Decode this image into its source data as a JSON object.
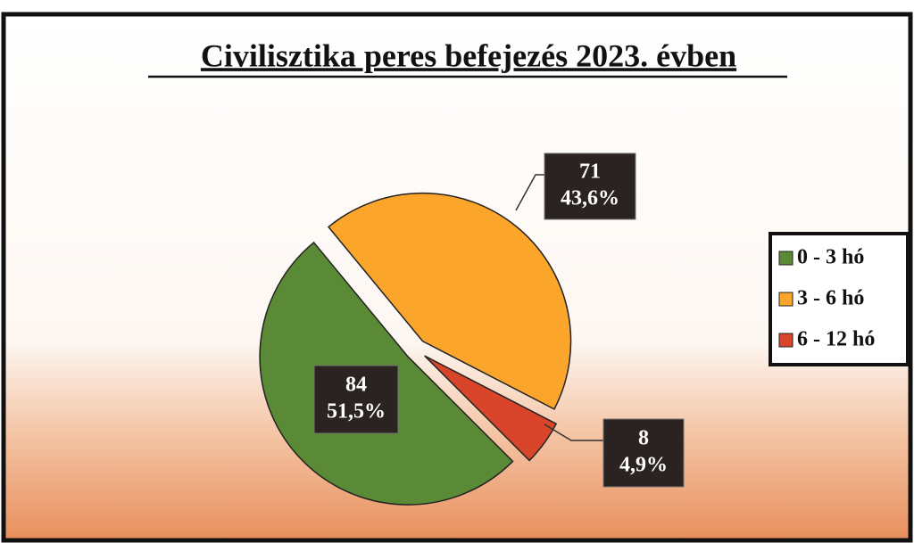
{
  "chart_data": {
    "type": "pie",
    "title": "Civilisztika peres befejezés 2023. évben",
    "categories": [
      "0 - 3 hó",
      "3 - 6 hó",
      "6 - 12 hó"
    ],
    "values": [
      84,
      71,
      8
    ],
    "percent_values": [
      51.5,
      43.6,
      4.9
    ],
    "percent_labels": [
      "51,5%",
      "43,6%",
      "4,9%"
    ],
    "colors": [
      "#5b8a36",
      "#fba62a",
      "#d8452b"
    ],
    "legend": "right"
  }
}
